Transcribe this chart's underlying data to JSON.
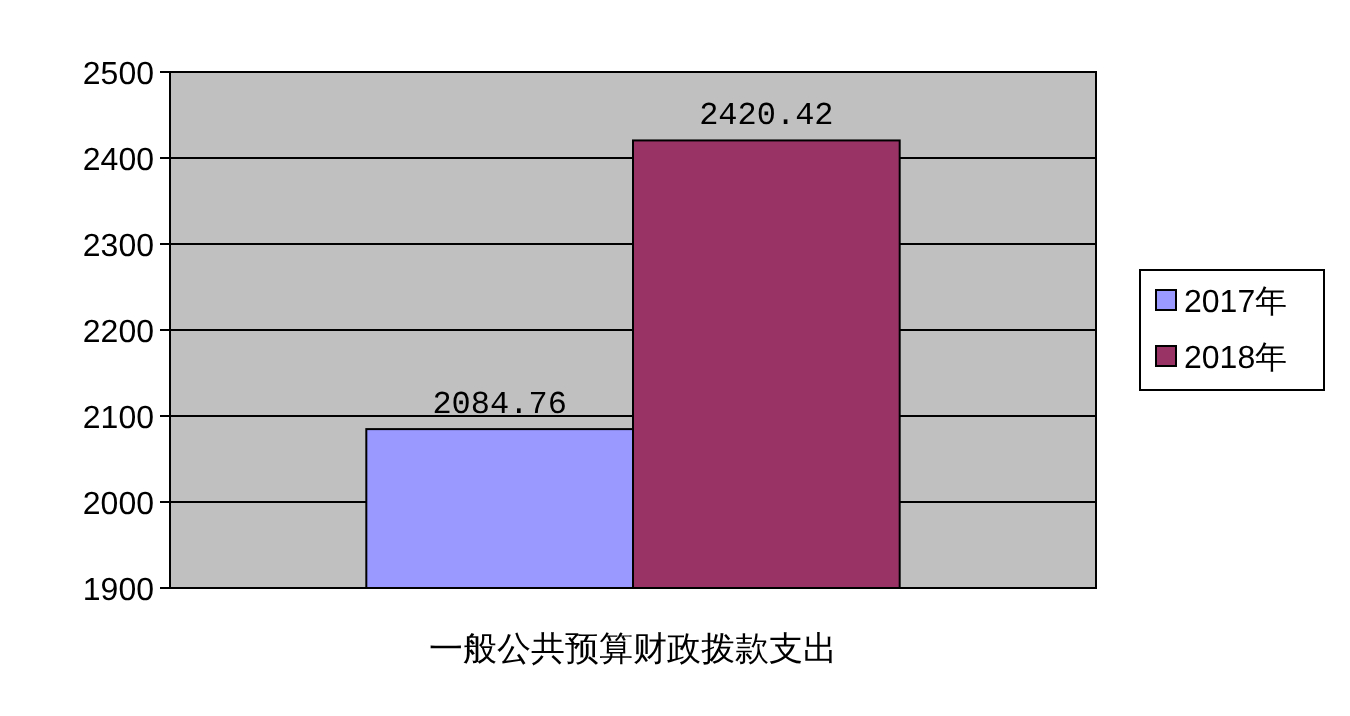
{
  "chart_data": {
    "type": "bar",
    "categories": [
      "一般公共预算财政拨款支出"
    ],
    "series": [
      {
        "name": "2017年",
        "color": "#9999ff",
        "values": [
          2084.76
        ]
      },
      {
        "name": "2018年",
        "color": "#993366",
        "values": [
          2420.42
        ]
      }
    ],
    "ylim": [
      1900,
      2500
    ],
    "yticks": [
      1900,
      2000,
      2100,
      2200,
      2300,
      2400,
      2500
    ],
    "grid": "y",
    "legend": "right",
    "data_labels": true
  }
}
